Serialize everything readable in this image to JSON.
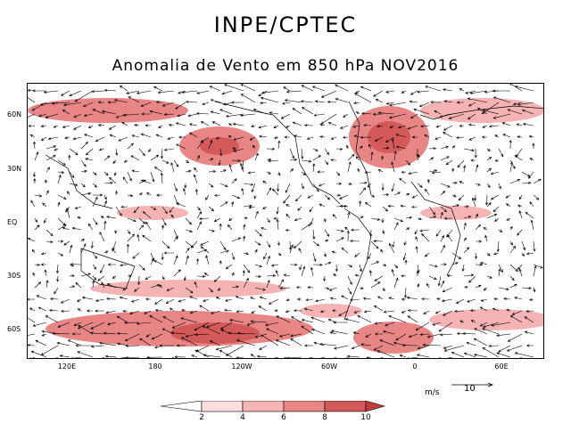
{
  "header": {
    "title": "INPE/CPTEC",
    "subtitle": "Anomalia de Vento em 850 hPa NOV2016"
  },
  "map": {
    "lat_labels": [
      "60N",
      "30N",
      "EQ",
      "30S",
      "60S"
    ],
    "lon_labels": [
      "120E",
      "180",
      "120W",
      "60W",
      "0",
      "60E"
    ],
    "shading_colors": [
      "#ffffff",
      "#fcdede",
      "#f5b3b3",
      "#e88585",
      "#d45a5a",
      "#c03c3c"
    ]
  },
  "reference_vector": {
    "units": "m/s",
    "value": "10"
  },
  "colorbar": {
    "labels": [
      "2",
      "4",
      "6",
      "8",
      "10"
    ]
  }
}
